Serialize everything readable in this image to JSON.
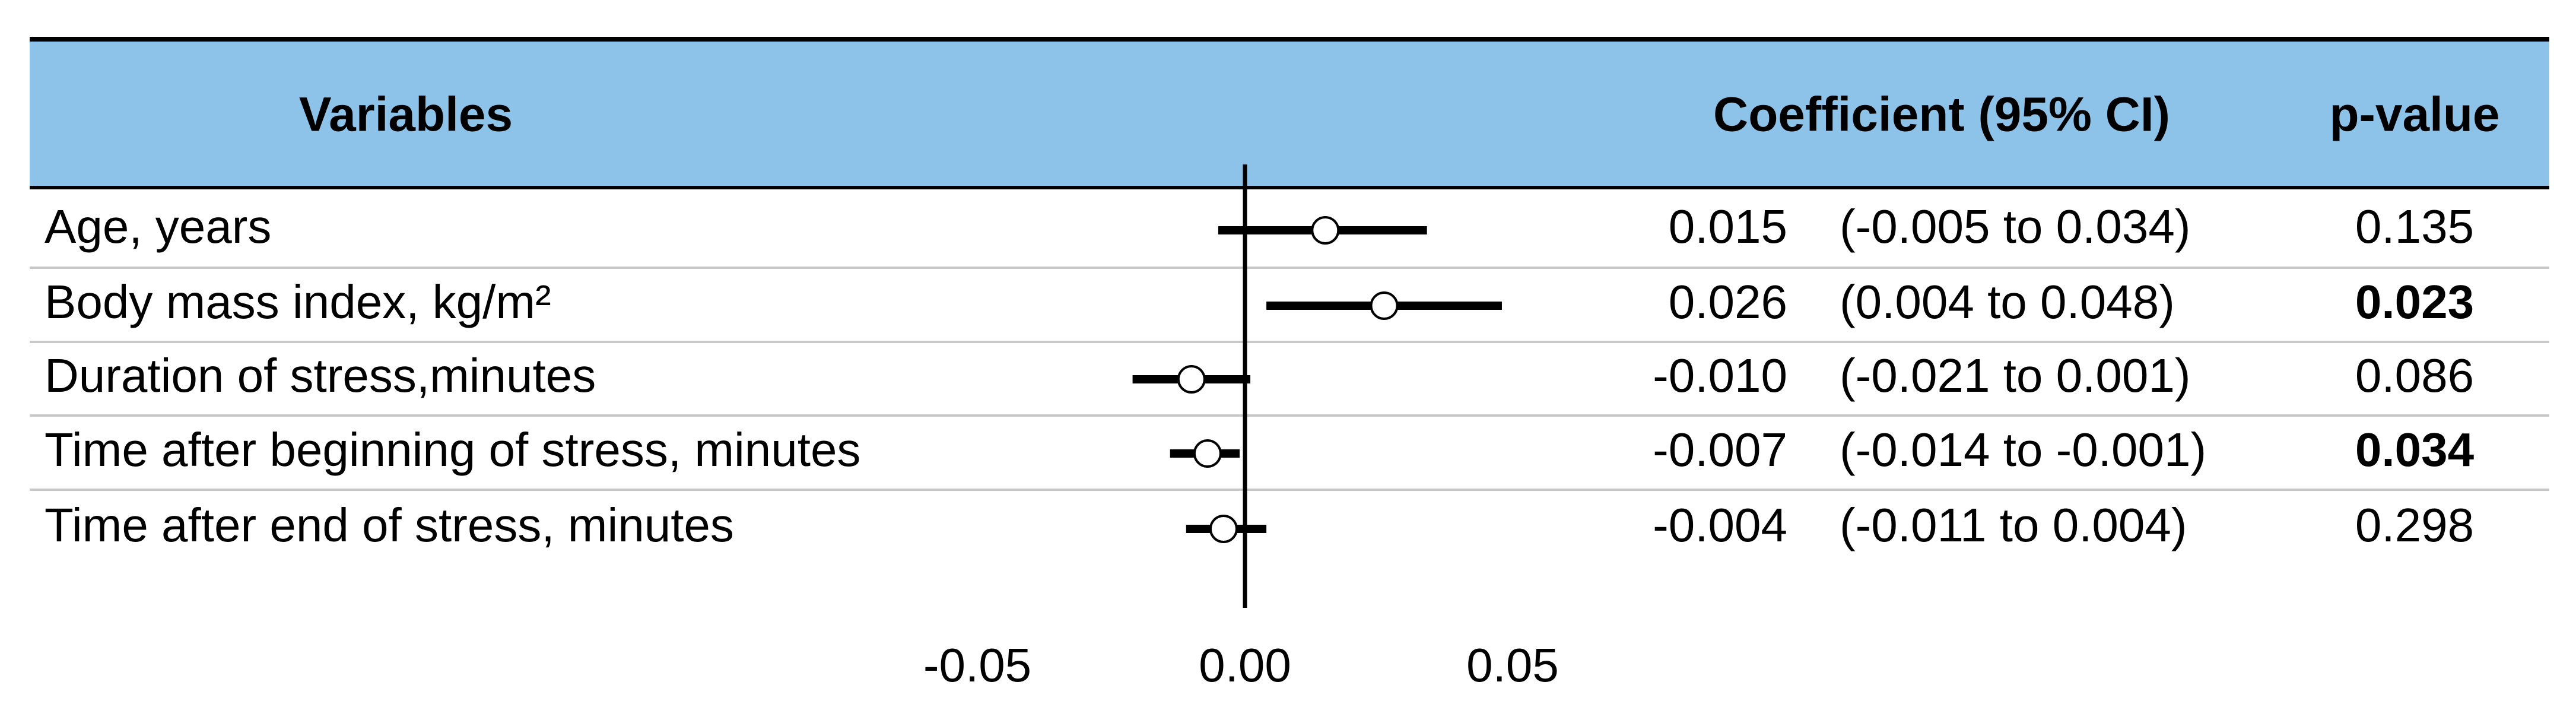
{
  "chart_data": {
    "type": "forest",
    "headers": {
      "variables": "Variables",
      "coefficient": "Coefficient (95% CI)",
      "p_value": "p-value"
    },
    "categories": [
      "Age, years",
      "Body mass index, kg/m²",
      "Duration of stress,minutes",
      "Time after beginning of stress, minutes",
      "Time after end of stress, minutes"
    ],
    "values": [
      0.015,
      0.026,
      -0.01,
      -0.007,
      -0.004
    ],
    "value_labels": [
      "0.015",
      "0.026",
      "-0.010",
      "-0.007",
      "-0.004"
    ],
    "lower": [
      -0.005,
      0.004,
      -0.021,
      -0.014,
      -0.011
    ],
    "upper": [
      0.034,
      0.048,
      0.001,
      -0.001,
      0.004
    ],
    "ci_labels": [
      "(-0.005 to 0.034)",
      "(0.004 to 0.048)",
      "(-0.021 to 0.001)",
      "(-0.014 to -0.001)",
      "(-0.011 to 0.004)"
    ],
    "p_values": [
      0.135,
      0.023,
      0.086,
      0.034,
      0.298
    ],
    "bold": [
      false,
      true,
      false,
      true,
      false
    ],
    "xlim": [
      -0.05,
      0.05
    ],
    "xticks": [
      -0.05,
      {
        "value": 0,
        "label": "0.00"
      },
      0.05
    ],
    "header_color": "#8dc3e8",
    "color": "#000000"
  }
}
